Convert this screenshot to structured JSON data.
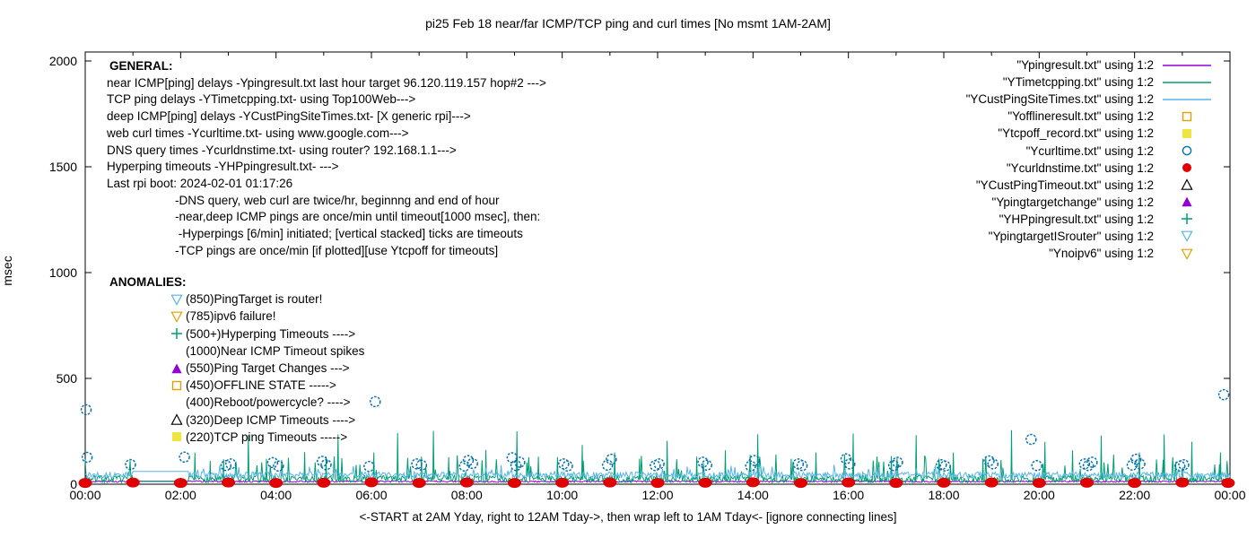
{
  "title": "pi25 Feb 18  near/far ICMP/TCP ping and curl times [No msmt 1AM-2AM]",
  "xlabel": "<-START at 2AM Yday, right to 12AM Tday->, then wrap left to 1AM Tday<- [ignore connecting lines]",
  "ylabel": "msec",
  "general": {
    "heading": "GENERAL:",
    "lines": [
      {
        "text": "near ICMP[ping] delays -Ypingresult.txt last hour target 96.120.119.157 hop#2 --->",
        "indent": false
      },
      {
        "text": "TCP ping delays -YTimetcpping.txt- using Top100Web--->",
        "indent": false
      },
      {
        "text": "deep ICMP[ping] delays -YCustPingSiteTimes.txt- [X generic rpi]--->",
        "indent": false
      },
      {
        "text": "web curl times -Ycurltime.txt- using www.google.com--->",
        "indent": false
      },
      {
        "text": "DNS query times -Ycurldnstime.txt- using router? 192.168.1.1--->",
        "indent": false
      },
      {
        "text": "Hyperping timeouts -YHPpingresult.txt- --->",
        "indent": false
      },
      {
        "text": "Last rpi boot: 2024-02-01 01:17:26",
        "indent": false
      },
      {
        "text": "-DNS query, web curl are twice/hr, beginnng and end of hour",
        "indent": true
      },
      {
        "text": "-near,deep ICMP pings are once/min until timeout[1000 msec], then:",
        "indent": true
      },
      {
        "text": " -Hyperpings [6/min] initiated; [vertical stacked] ticks are timeouts",
        "indent": true
      },
      {
        "text": "-TCP pings are once/min [if plotted][use Ytcpoff for timeouts]",
        "indent": true
      }
    ]
  },
  "anomalies": {
    "heading": "ANOMALIES:",
    "items": [
      {
        "marker": "triangle-down-open",
        "color": "#56b4e9",
        "text": "(850)PingTarget is router!"
      },
      {
        "marker": "triangle-down-open",
        "color": "#e69f00",
        "text": "(785)ipv6 failure!"
      },
      {
        "marker": "plus",
        "color": "#009e73",
        "text": "(500+)Hyperping Timeouts ---->"
      },
      {
        "marker": "none",
        "color": "",
        "text": "(1000)Near ICMP Timeout spikes"
      },
      {
        "marker": "triangle-up-filled",
        "color": "#9400d3",
        "text": "(550)Ping Target Changes --->"
      },
      {
        "marker": "square-open",
        "color": "#e69f00",
        "text": "(450)OFFLINE STATE ----->"
      },
      {
        "marker": "none",
        "color": "",
        "text": "(400)Reboot/powercycle? ---->"
      },
      {
        "marker": "triangle-up-open",
        "color": "#000000",
        "text": "(320)Deep ICMP Timeouts ---->"
      },
      {
        "marker": "square-filled",
        "color": "#f0e442",
        "text": "(220)TCP ping Timeouts ----->"
      }
    ]
  },
  "legend": {
    "items": [
      {
        "label": "\"Ypingresult.txt\" using 1:2",
        "sample": "line",
        "color": "#9400d3"
      },
      {
        "label": "\"YTimetcpping.txt\" using 1:2",
        "sample": "line",
        "color": "#009e73"
      },
      {
        "label": "\"YCustPingSiteTimes.txt\" using 1:2",
        "sample": "line",
        "color": "#56b4e9"
      },
      {
        "label": "\"Yofflineresult.txt\" using 1:2",
        "sample": "square-open",
        "color": "#e69f00"
      },
      {
        "label": "\"Ytcpoff_record.txt\" using 1:2",
        "sample": "square-filled",
        "color": "#f0e442"
      },
      {
        "label": "\"Ycurltime.txt\" using 1:2",
        "sample": "circle-open",
        "color": "#0072b2"
      },
      {
        "label": "\"Ycurldnstime.txt\" using 1:2",
        "sample": "circle-filled",
        "color": "#e00000"
      },
      {
        "label": "\"YCustPingTimeout.txt\" using 1:2",
        "sample": "triangle-up-open",
        "color": "#000000"
      },
      {
        "label": "\"Ypingtargetchange\" using 1:2",
        "sample": "triangle-up-filled",
        "color": "#9400d3"
      },
      {
        "label": "\"YHPpingresult.txt\" using 1:2",
        "sample": "plus",
        "color": "#009e73"
      },
      {
        "label": "\"YpingtargetISrouter\" using 1:2",
        "sample": "triangle-down-open",
        "color": "#56b4e9"
      },
      {
        "label": "\"Ynoipv6\" using 1:2",
        "sample": "triangle-down-open",
        "color": "#e69f00"
      }
    ]
  },
  "chart_data": {
    "type": "line",
    "title": "pi25 Feb 18  near/far ICMP/TCP ping and curl times [No msmt 1AM-2AM]",
    "xlabel": "<-START at 2AM Yday, right to 12AM Tday->, then wrap left to 1AM Tday<- [ignore connecting lines]",
    "ylabel": "msec",
    "grid": false,
    "legend_position": "top-right-inside",
    "xlim_hours": [
      0,
      24
    ],
    "ylim": [
      0,
      2050
    ],
    "x_tick_hours": [
      0,
      2,
      4,
      6,
      8,
      10,
      12,
      14,
      16,
      18,
      20,
      22,
      24
    ],
    "x_tick_labels": [
      "00:00",
      "02:00",
      "04:00",
      "06:00",
      "08:00",
      "10:00",
      "12:00",
      "14:00",
      "16:00",
      "18:00",
      "20:00",
      "22:00",
      "00:00"
    ],
    "x_minor_tick_every_hours": 1,
    "y_ticks": [
      0,
      500,
      1000,
      1500,
      2000
    ],
    "no_measurement_gap_hours": [
      1.0,
      2.17
    ],
    "series": [
      {
        "name": "Ypingresult.txt",
        "role": "near ICMP ping delay",
        "style": "line",
        "color": "#9400d3",
        "seed": 3,
        "band_msec": [
          9,
          17
        ],
        "gap_value_msec": 13,
        "spikes": []
      },
      {
        "name": "YTimetcpping.txt",
        "role": "TCP ping delay",
        "style": "line",
        "color": "#009e73",
        "seed": 7,
        "band_msec": [
          8,
          42
        ],
        "minor_spike_chance": 0.07,
        "minor_spike_extra_msec": [
          40,
          110
        ],
        "gap_value_msec": 15,
        "spikes": [
          [
            2.3,
            150
          ],
          [
            2.62,
            110
          ],
          [
            2.9,
            118
          ],
          [
            3.42,
            232
          ],
          [
            3.8,
            120
          ],
          [
            4.6,
            152
          ],
          [
            5.05,
            130
          ],
          [
            5.3,
            235
          ],
          [
            6.05,
            150
          ],
          [
            6.55,
            242
          ],
          [
            7.05,
            130
          ],
          [
            7.3,
            252
          ],
          [
            7.62,
            128
          ],
          [
            8.4,
            162
          ],
          [
            9.05,
            250
          ],
          [
            9.5,
            130
          ],
          [
            9.9,
            128
          ],
          [
            10.42,
            186
          ],
          [
            11.1,
            150
          ],
          [
            11.62,
            120
          ],
          [
            12.2,
            205
          ],
          [
            12.82,
            130
          ],
          [
            13.42,
            160
          ],
          [
            14.1,
            236
          ],
          [
            14.8,
            120
          ],
          [
            15.32,
            150
          ],
          [
            16.1,
            240
          ],
          [
            16.9,
            132
          ],
          [
            17.42,
            232
          ],
          [
            18.2,
            150
          ],
          [
            18.82,
            120
          ],
          [
            19.42,
            255
          ],
          [
            20.12,
            200
          ],
          [
            20.7,
            160
          ],
          [
            21.3,
            230
          ],
          [
            22.1,
            150
          ],
          [
            22.62,
            235
          ],
          [
            23.2,
            200
          ],
          [
            23.8,
            150
          ]
        ]
      },
      {
        "name": "YCustPingSiteTimes.txt",
        "role": "deep ICMP ping delay",
        "style": "line",
        "color": "#56b4e9",
        "seed": 13,
        "band_msec": [
          30,
          58
        ],
        "minor_spike_chance": 0.05,
        "minor_spike_extra_msec": [
          15,
          40
        ],
        "gap_value_msec": 60,
        "spikes": []
      },
      {
        "name": "Ycurltime.txt",
        "role": "web curl time",
        "style": "points",
        "marker": "circle-open",
        "color": "#0072b2",
        "points": [
          [
            0.02,
            352
          ],
          [
            0.04,
            127
          ],
          [
            0.95,
            93
          ],
          [
            2.08,
            128
          ],
          [
            2.95,
            88
          ],
          [
            3.05,
            96
          ],
          [
            3.93,
            102
          ],
          [
            4.05,
            86
          ],
          [
            4.97,
            108
          ],
          [
            5.05,
            92
          ],
          [
            5.95,
            84
          ],
          [
            6.08,
            390
          ],
          [
            6.95,
            96
          ],
          [
            7.05,
            90
          ],
          [
            7.95,
            86
          ],
          [
            8.03,
            112
          ],
          [
            8.12,
            98
          ],
          [
            8.95,
            125
          ],
          [
            9.03,
            88
          ],
          [
            9.11,
            104
          ],
          [
            10.03,
            96
          ],
          [
            10.11,
            86
          ],
          [
            10.95,
            90
          ],
          [
            11.03,
            118
          ],
          [
            11.95,
            88
          ],
          [
            12.03,
            96
          ],
          [
            12.95,
            104
          ],
          [
            13.03,
            90
          ],
          [
            13.95,
            86
          ],
          [
            14.03,
            112
          ],
          [
            14.95,
            96
          ],
          [
            15.03,
            88
          ],
          [
            15.95,
            120
          ],
          [
            16.03,
            96
          ],
          [
            16.95,
            88
          ],
          [
            17.03,
            104
          ],
          [
            17.95,
            92
          ],
          [
            18.03,
            86
          ],
          [
            18.95,
            110
          ],
          [
            19.03,
            96
          ],
          [
            19.83,
            212
          ],
          [
            19.95,
            88
          ],
          [
            20.95,
            96
          ],
          [
            21.03,
            88
          ],
          [
            21.11,
            104
          ],
          [
            21.95,
            90
          ],
          [
            22.03,
            118
          ],
          [
            22.11,
            96
          ],
          [
            22.95,
            86
          ],
          [
            23.03,
            92
          ],
          [
            23.87,
            423
          ]
        ]
      },
      {
        "name": "Ycurldnstime.txt",
        "role": "DNS query time",
        "style": "points",
        "marker": "dot-filled",
        "color": "#e00000",
        "points": [
          [
            0,
            6
          ],
          [
            1,
            8
          ],
          [
            2,
            6
          ],
          [
            3,
            8
          ],
          [
            4,
            6
          ],
          [
            5,
            7
          ],
          [
            6,
            9
          ],
          [
            7,
            6
          ],
          [
            8,
            8
          ],
          [
            9,
            6
          ],
          [
            10,
            7
          ],
          [
            11,
            8
          ],
          [
            12,
            6
          ],
          [
            13,
            7
          ],
          [
            14,
            9
          ],
          [
            15,
            6
          ],
          [
            16,
            8
          ],
          [
            17,
            6
          ],
          [
            18,
            7
          ],
          [
            19,
            8
          ],
          [
            20,
            6
          ],
          [
            21,
            7
          ],
          [
            22,
            6
          ],
          [
            23,
            8
          ],
          [
            23.96,
            6
          ]
        ]
      },
      {
        "name": "Yofflineresult.txt",
        "role": "offline state",
        "style": "points",
        "marker": "square-open",
        "color": "#e69f00",
        "points": []
      },
      {
        "name": "Ytcpoff_record.txt",
        "role": "TCP ping timeouts",
        "style": "points",
        "marker": "square-filled",
        "color": "#f0e442",
        "points": []
      },
      {
        "name": "YCustPingTimeout.txt",
        "role": "deep ICMP timeouts",
        "style": "points",
        "marker": "triangle-up-open",
        "color": "#000000",
        "points": []
      },
      {
        "name": "Ypingtargetchange",
        "role": "ping target change",
        "style": "points",
        "marker": "triangle-up-filled",
        "color": "#9400d3",
        "points": []
      },
      {
        "name": "YHPpingresult.txt",
        "role": "hyperping timeouts",
        "style": "points",
        "marker": "plus",
        "color": "#009e73",
        "points": []
      },
      {
        "name": "YpingtargetISrouter",
        "role": "target is router",
        "style": "points",
        "marker": "triangle-down-open",
        "color": "#56b4e9",
        "points": []
      },
      {
        "name": "Ynoipv6",
        "role": "ipv6 failure",
        "style": "points",
        "marker": "triangle-down-open",
        "color": "#e69f00",
        "points": []
      }
    ]
  }
}
